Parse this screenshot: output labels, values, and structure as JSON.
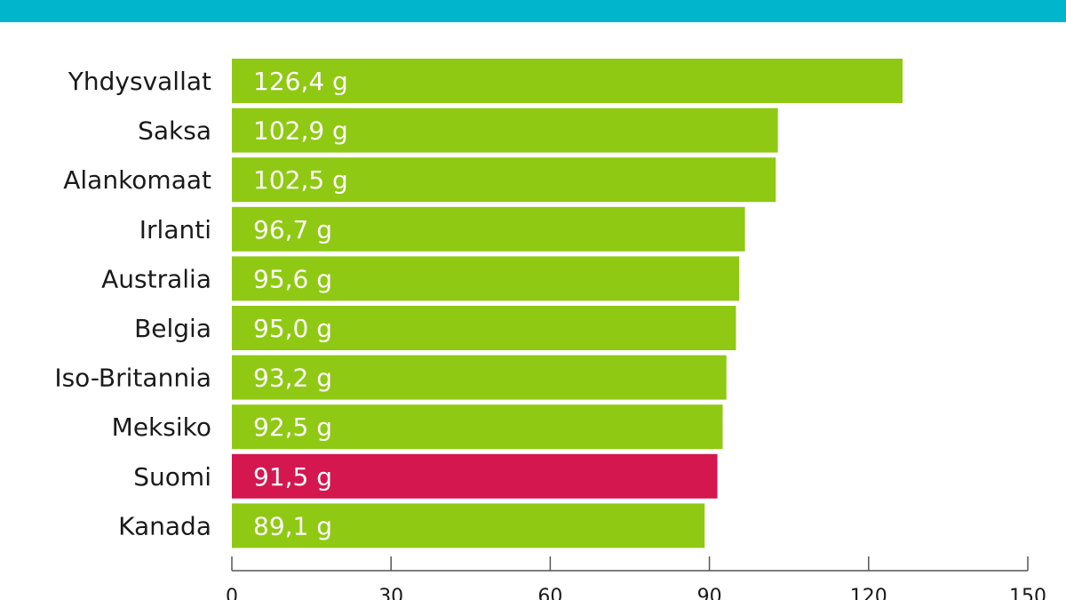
{
  "chart_data": {
    "type": "hbar",
    "categories": [
      "Yhdysvallat",
      "Saksa",
      "Alankomaat",
      "Irlanti",
      "Australia",
      "Belgia",
      "Iso-Britannia",
      "Meksiko",
      "Suomi",
      "Kanada"
    ],
    "values": [
      126.4,
      102.9,
      102.5,
      96.7,
      95.6,
      95.0,
      93.2,
      92.5,
      91.5,
      89.1
    ],
    "value_labels": [
      "126,4 g",
      "102,9 g",
      "102,5 g",
      "96,7 g",
      "95,6 g",
      "95,0 g",
      "93,2 g",
      "92,5 g",
      "91,5 g",
      "89,1 g"
    ],
    "colors": [
      "#8fc913",
      "#8fc913",
      "#8fc913",
      "#8fc913",
      "#8fc913",
      "#8fc913",
      "#8fc913",
      "#8fc913",
      "#d4174f",
      "#8fc913"
    ],
    "xlim": [
      0,
      150
    ],
    "xticks": [
      0,
      30,
      60,
      90,
      120,
      150
    ]
  }
}
